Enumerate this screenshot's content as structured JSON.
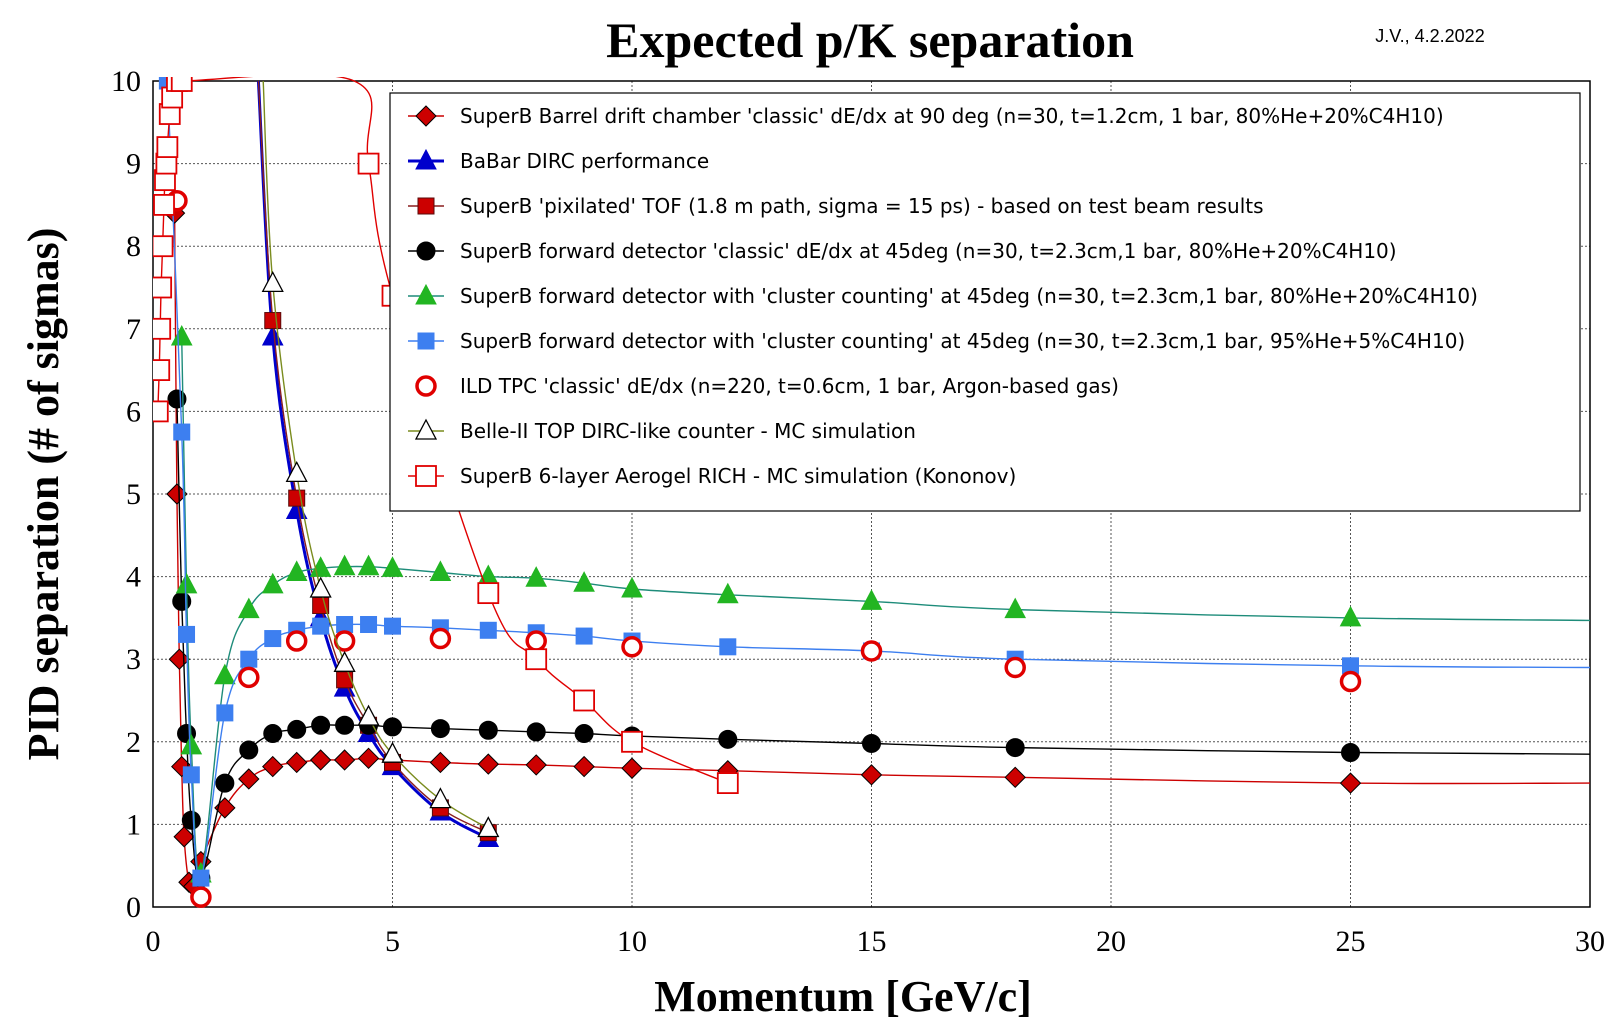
{
  "chart_data": {
    "type": "scatter",
    "title": "Expected p/K separation",
    "note": "J.V., 4.2.2022",
    "xlabel": "Momentum [GeV/c]",
    "ylabel": "PID separation (# of sigmas)",
    "xlim": [
      0,
      30
    ],
    "ylim": [
      0,
      10
    ],
    "xticks": [
      "0",
      "5",
      "10",
      "15",
      "20",
      "25",
      "30"
    ],
    "yticks": [
      "0",
      "1",
      "2",
      "3",
      "4",
      "5",
      "6",
      "7",
      "8",
      "9",
      "10"
    ],
    "grid": true,
    "legend_position": "top-right",
    "series": [
      {
        "name": "SuperB Barrel drift chamber 'classic' dE/dx at 90 deg (n=30, t=1.2cm, 1 bar, 80%He+20%C4H10)",
        "color": "#cc0000",
        "fill": "#cc0000",
        "line": "#cc0000",
        "marker": "diamond",
        "x": [
          0.45,
          0.5,
          0.55,
          0.6,
          0.65,
          0.75,
          0.85,
          1.0,
          1.5,
          2.0,
          2.5,
          3.0,
          3.5,
          4.0,
          4.5,
          5.0,
          6.0,
          7.0,
          8.0,
          9.0,
          10.0,
          12.0,
          15.0,
          18.0,
          25.0,
          30.0
        ],
        "y": [
          8.4,
          5.0,
          3.0,
          1.7,
          0.85,
          0.3,
          0.25,
          0.55,
          1.2,
          1.55,
          1.7,
          1.75,
          1.78,
          1.78,
          1.8,
          1.78,
          1.75,
          1.73,
          1.72,
          1.7,
          1.68,
          1.65,
          1.6,
          1.57,
          1.5,
          1.5
        ],
        "marker_count": 25
      },
      {
        "name": "BaBar DIRC performance",
        "color": "#0000cc",
        "fill": "#0000cc",
        "line": "#0000cc",
        "marker": "triangle",
        "x": [
          2.2,
          2.5,
          3.0,
          3.5,
          4.0,
          4.5,
          5.0,
          6.0,
          7.0
        ],
        "y": [
          10.0,
          6.9,
          4.8,
          3.5,
          2.65,
          2.1,
          1.7,
          1.15,
          0.83
        ],
        "markers_from": 1
      },
      {
        "name": "SuperB 'pixilated' TOF (1.8 m path, sigma = 15 ps) - based on test beam results",
        "color": "#cc0000",
        "fill": "#cc0000",
        "line": "#8a1f1f",
        "marker": "square",
        "x": [
          2.2,
          2.5,
          3.0,
          3.5,
          4.0,
          4.5,
          5.0,
          6.0,
          7.0
        ],
        "y": [
          10.0,
          7.1,
          4.95,
          3.65,
          2.75,
          2.2,
          1.75,
          1.2,
          0.9
        ],
        "markers_from": 1
      },
      {
        "name": "SuperB forward detector 'classic' dE/dx at 45deg (n=30, t=2.3cm,1 bar, 80%He+20%C4H10)",
        "color": "#000000",
        "fill": "#000000",
        "line": "#000000",
        "marker": "circle",
        "x": [
          0.5,
          0.6,
          0.7,
          0.8,
          1.0,
          1.5,
          2.0,
          2.5,
          3.0,
          3.5,
          4.0,
          4.5,
          5.0,
          6.0,
          7.0,
          8.0,
          9.0,
          10.0,
          12.0,
          15.0,
          18.0,
          25.0,
          30.0
        ],
        "y": [
          6.15,
          3.7,
          2.1,
          1.05,
          0.35,
          1.5,
          1.9,
          2.1,
          2.15,
          2.2,
          2.2,
          2.2,
          2.18,
          2.16,
          2.14,
          2.12,
          2.1,
          2.07,
          2.03,
          1.98,
          1.93,
          1.87,
          1.85
        ],
        "marker_count": 22
      },
      {
        "name": "SuperB forward detector with 'cluster counting' at 45deg (n=30, t=2.3cm,1 bar, 80%He+20%C4H10)",
        "color": "#22b522",
        "fill": "#22b522",
        "line": "#1e8c7a",
        "marker": "triangle",
        "x": [
          0.6,
          0.7,
          0.8,
          1.0,
          1.5,
          2.0,
          2.5,
          3.0,
          3.5,
          4.0,
          4.5,
          5.0,
          6.0,
          7.0,
          8.0,
          9.0,
          10.0,
          12.0,
          15.0,
          18.0,
          25.0,
          30.0
        ],
        "y": [
          6.9,
          3.9,
          1.95,
          0.4,
          2.8,
          3.6,
          3.9,
          4.05,
          4.1,
          4.12,
          4.12,
          4.1,
          4.05,
          4.0,
          3.98,
          3.92,
          3.85,
          3.78,
          3.7,
          3.6,
          3.5,
          3.47
        ],
        "marker_count": 21
      },
      {
        "name": "SuperB forward detector with 'cluster counting' at 45deg (n=30, t=2.3cm,1 bar, 95%He+5%C4H10)",
        "color": "#3d7ff0",
        "fill": "#3d7ff0",
        "line": "#3d7ff0",
        "marker": "square",
        "x": [
          0.3,
          0.6,
          0.7,
          0.8,
          1.0,
          1.5,
          2.0,
          2.5,
          3.0,
          3.5,
          4.0,
          4.5,
          5.0,
          6.0,
          7.0,
          8.0,
          9.0,
          10.0,
          12.0,
          15.0,
          18.0,
          25.0,
          30.0
        ],
        "y": [
          10.0,
          5.75,
          3.3,
          1.6,
          0.35,
          2.35,
          3.0,
          3.25,
          3.35,
          3.4,
          3.42,
          3.42,
          3.4,
          3.38,
          3.35,
          3.32,
          3.28,
          3.22,
          3.15,
          3.1,
          3.0,
          2.92,
          2.9
        ],
        "marker_count": 22
      },
      {
        "name": "ILD TPC 'classic' dE/dx (n=220, t=0.6cm, 1 bar, Argon-based gas)",
        "color": "#e00000",
        "fill": "#ffffff",
        "line": "none",
        "marker": "open-circle",
        "x": [
          0.5,
          1.0,
          2.0,
          3.0,
          4.0,
          6.0,
          8.0,
          10.0,
          15.0,
          18.0,
          25.0
        ],
        "y": [
          8.55,
          0.12,
          2.78,
          3.22,
          3.22,
          3.25,
          3.22,
          3.15,
          3.1,
          2.9,
          2.73
        ]
      },
      {
        "name": "Belle-II TOP DIRC-like counter - MC simulation",
        "color": "#000000",
        "fill": "#ffffff",
        "line": "#7a8c1e",
        "marker": "open-triangle",
        "x": [
          2.3,
          2.5,
          3.0,
          3.5,
          4.0,
          4.5,
          5.0,
          6.0,
          7.0
        ],
        "y": [
          10.0,
          7.55,
          5.25,
          3.85,
          2.95,
          2.3,
          1.85,
          1.3,
          0.95
        ],
        "markers_from": 1
      },
      {
        "name": "SuperB 6-layer Aerogel RICH - MC simulation (Kononov)",
        "color": "#e00000",
        "fill": "#ffffff",
        "line": "#e00000",
        "marker": "open-square",
        "x": [
          0.1,
          0.13,
          0.15,
          0.17,
          0.2,
          0.23,
          0.25,
          0.28,
          0.3,
          0.35,
          0.4,
          0.5,
          0.6,
          4.2,
          4.5,
          5.0,
          7.0,
          8.0,
          9.0,
          10.0,
          12.0
        ],
        "y": [
          6.0,
          6.5,
          7.0,
          7.5,
          8.0,
          8.5,
          8.8,
          9.0,
          9.2,
          9.6,
          9.8,
          10.0,
          10.0,
          10.0,
          9.0,
          7.4,
          3.8,
          3.0,
          2.5,
          2.0,
          1.5
        ],
        "marker_indices": [
          0,
          1,
          2,
          3,
          4,
          5,
          6,
          7,
          8,
          9,
          10,
          11,
          12,
          14,
          15,
          16,
          17,
          18,
          19,
          20
        ]
      }
    ]
  }
}
